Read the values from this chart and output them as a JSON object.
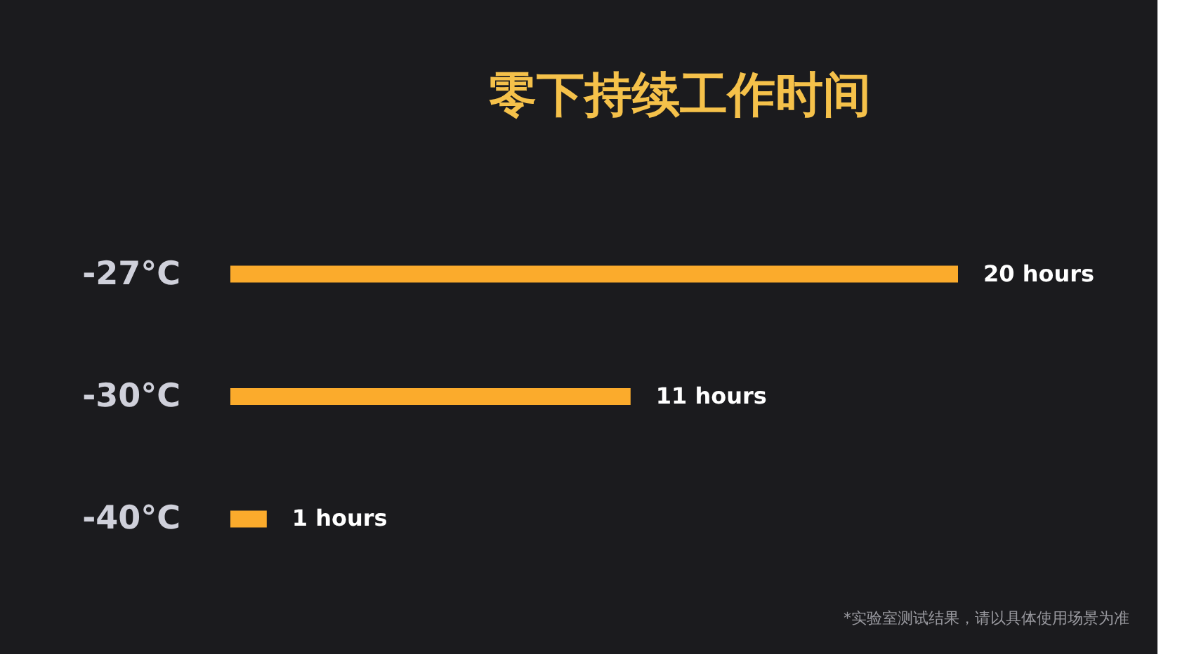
{
  "chart_data": {
    "type": "bar",
    "orientation": "horizontal",
    "title": "零下持续工作时间",
    "categories": [
      "-27°C",
      "-30°C",
      "-40°C"
    ],
    "values": [
      20,
      11,
      1
    ],
    "value_labels": [
      "20 hours",
      "11 hours",
      "1 hours"
    ],
    "color": "#fbab2c",
    "annotations": [
      "*实验室测试结果，请以具体使用场景为准"
    ]
  }
}
